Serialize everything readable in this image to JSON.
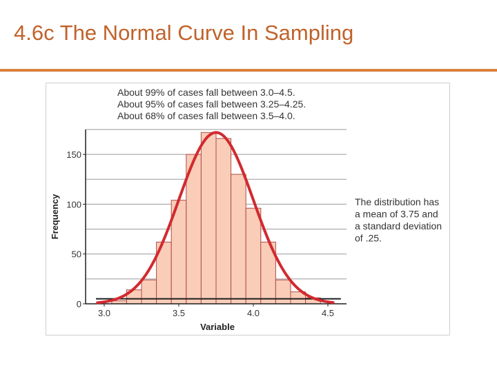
{
  "slide": {
    "title": "4.6c The Normal Curve In Sampling"
  },
  "chart_data": {
    "type": "bar",
    "subtype": "histogram-with-normal-curve",
    "xlabel": "Variable",
    "ylabel": "Frequency",
    "xlim": [
      2.875,
      4.625
    ],
    "ylim": [
      0,
      175
    ],
    "xticks": [
      "3.0",
      "3.5",
      "4.0",
      "4.5"
    ],
    "xtick_values": [
      3.0,
      3.5,
      4.0,
      4.5
    ],
    "yticks": [
      "0",
      "50",
      "100",
      "150"
    ],
    "ytick_values": [
      0,
      50,
      100,
      150
    ],
    "grid": "horizontal",
    "bin_width": 0.1,
    "bins": [
      {
        "start": 3.05,
        "end": 3.15,
        "value": 3
      },
      {
        "start": 3.15,
        "end": 3.25,
        "value": 14
      },
      {
        "start": 3.25,
        "end": 3.35,
        "value": 24
      },
      {
        "start": 3.35,
        "end": 3.45,
        "value": 62
      },
      {
        "start": 3.45,
        "end": 3.55,
        "value": 104
      },
      {
        "start": 3.55,
        "end": 3.65,
        "value": 150
      },
      {
        "start": 3.65,
        "end": 3.75,
        "value": 172
      },
      {
        "start": 3.75,
        "end": 3.85,
        "value": 166
      },
      {
        "start": 3.85,
        "end": 3.95,
        "value": 130
      },
      {
        "start": 3.95,
        "end": 4.05,
        "value": 96
      },
      {
        "start": 4.05,
        "end": 4.15,
        "value": 62
      },
      {
        "start": 4.15,
        "end": 4.25,
        "value": 24
      },
      {
        "start": 4.25,
        "end": 4.35,
        "value": 12
      },
      {
        "start": 4.35,
        "end": 4.45,
        "value": 6
      }
    ],
    "normal_curve": {
      "mean": 3.75,
      "sd": 0.25,
      "peak": 172
    },
    "baseline": {
      "from": 3.0,
      "to": 4.55,
      "value": 5
    },
    "annotations": {
      "top": [
        "About 99% of cases fall between 3.0–4.5.",
        "About 95% of cases fall between 3.25–4.25.",
        "About 68% of cases fall between 3.5–4.0."
      ],
      "side": [
        "The distribution has",
        "a mean of 3.75 and",
        "a standard deviation",
        "of .25."
      ]
    },
    "colors": {
      "bar_fill": "#f9cdb8",
      "bar_stroke": "#b24a45",
      "curve": "#d12a2f",
      "grid": "#9a9a9a",
      "axis": "#1f1f1f",
      "title": "#c0622a",
      "rule": "#d9813e"
    }
  }
}
